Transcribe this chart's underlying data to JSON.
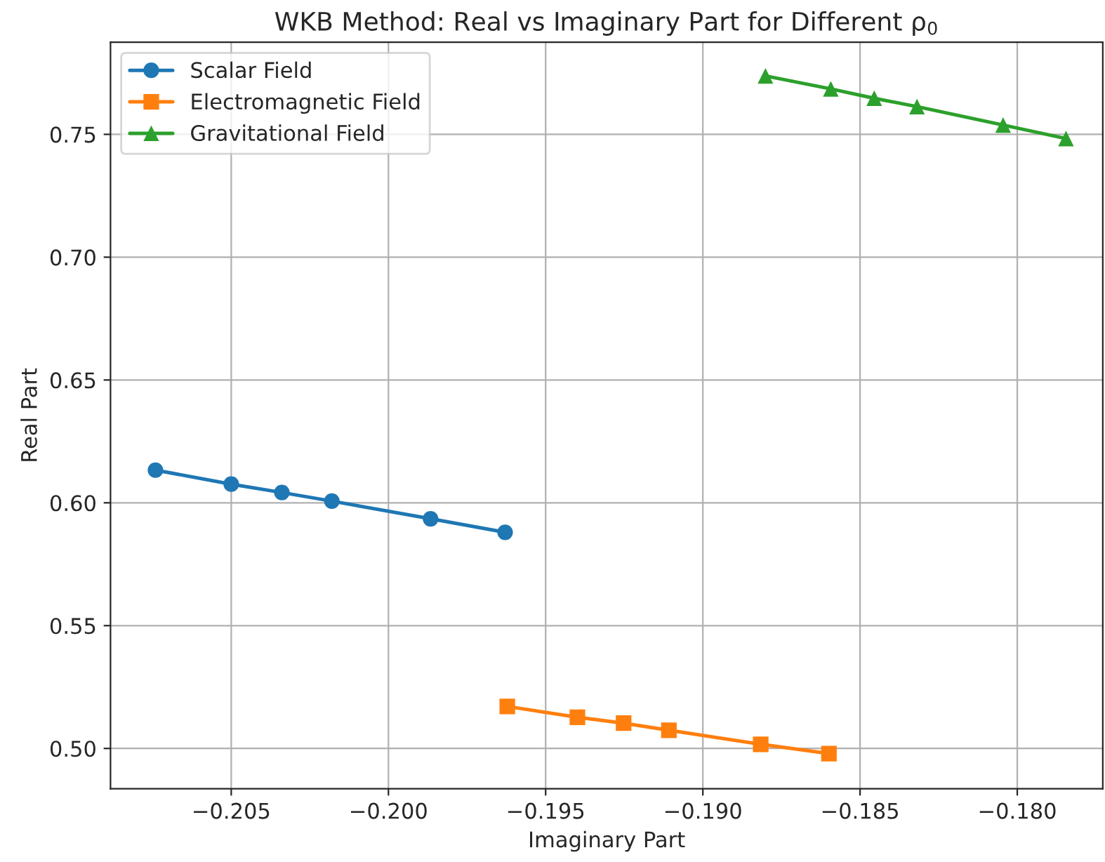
{
  "chart_data": {
    "type": "line",
    "title": "WKB Method: Real vs Imaginary Part for Different ρ$_{0}$",
    "xlabel": "Imaginary Part",
    "ylabel": "Real Part",
    "series": [
      {
        "name": "Scalar Field",
        "color": "#1f77b4",
        "marker": "circle",
        "x": [
          -0.20741,
          -0.205,
          -0.20339,
          -0.2018,
          -0.19866,
          -0.19629
        ],
        "values": [
          0.6133,
          0.6076,
          0.6042,
          0.6007,
          0.5935,
          0.588
        ]
      },
      {
        "name": "Electromagnetic Field",
        "color": "#ff7f0e",
        "marker": "square",
        "x": [
          -0.19622,
          -0.19399,
          -0.19252,
          -0.19108,
          -0.18816,
          -0.18599
        ],
        "values": [
          0.5171,
          0.5127,
          0.5103,
          0.5074,
          0.5017,
          0.4979
        ]
      },
      {
        "name": "Gravitational Field",
        "color": "#2ca02c",
        "marker": "triangle",
        "x": [
          -0.18801,
          -0.18593,
          -0.18455,
          -0.18319,
          -0.18045,
          -0.17845
        ],
        "values": [
          0.7738,
          0.7685,
          0.7647,
          0.7613,
          0.7538,
          0.7483
        ]
      }
    ],
    "xlim": [
      -0.20884,
      -0.17728
    ],
    "ylim": [
      0.4836,
      0.7875
    ],
    "xticks": [
      {
        "value": -0.205,
        "label": "−0.205"
      },
      {
        "value": -0.2,
        "label": "−0.200"
      },
      {
        "value": -0.195,
        "label": "−0.195"
      },
      {
        "value": -0.19,
        "label": "−0.190"
      },
      {
        "value": -0.185,
        "label": "−0.185"
      },
      {
        "value": -0.18,
        "label": "−0.180"
      }
    ],
    "yticks": [
      {
        "value": 0.5,
        "label": "0.50"
      },
      {
        "value": 0.55,
        "label": "0.55"
      },
      {
        "value": 0.6,
        "label": "0.60"
      },
      {
        "value": 0.65,
        "label": "0.65"
      },
      {
        "value": 0.7,
        "label": "0.70"
      },
      {
        "value": 0.75,
        "label": "0.75"
      }
    ],
    "grid": true,
    "legend": "top left",
    "line_style": "solid"
  }
}
